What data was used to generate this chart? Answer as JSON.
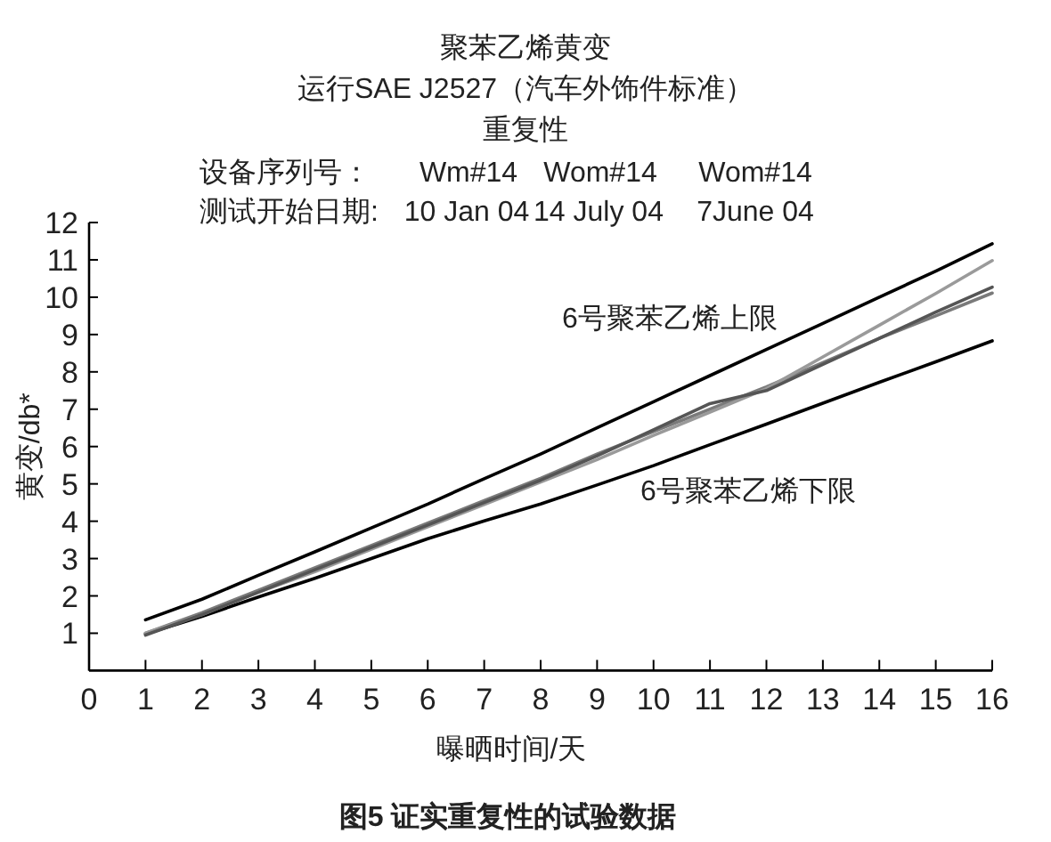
{
  "chart_data": {
    "type": "line",
    "title": "聚苯乙烯黄变",
    "subtitle": "运行SAE J2527（汽车外饰件标准）",
    "xlabel": "曝晒时间/天",
    "ylabel": "黄变/db*",
    "annotations": [
      "重复性",
      "设备序列号：",
      "Wm#14",
      "Wom#14",
      "Wom#14",
      "测试开始日期:",
      "10 Jan 04",
      "14 July 04",
      "7June 04",
      "6号聚苯乙烯上限",
      "6号聚苯乙烯下限",
      "图5 证实重复性的试验数据"
    ],
    "x": [
      1,
      2,
      3,
      4,
      5,
      6,
      7,
      8,
      9,
      10,
      11,
      12,
      13,
      14,
      15,
      16
    ],
    "series": [
      {
        "color": "#000000",
        "values": [
          1.36,
          1.91,
          2.55,
          3.18,
          3.82,
          4.46,
          5.14,
          5.8,
          6.5,
          7.2,
          7.9,
          8.6,
          9.3,
          10.0,
          10.7,
          11.43
        ]
      },
      {
        "color": "#000000",
        "values": [
          0.98,
          1.45,
          1.97,
          2.47,
          3.0,
          3.53,
          4.01,
          4.46,
          4.97,
          5.49,
          6.05,
          6.6,
          7.16,
          7.72,
          8.27,
          8.83
        ]
      },
      {
        "color": "#7a7a7a",
        "values": [
          1.0,
          1.55,
          2.15,
          2.75,
          3.35,
          3.95,
          4.55,
          5.15,
          5.8,
          6.4,
          7.0,
          7.6,
          8.25,
          8.9,
          9.5,
          10.11
        ]
      },
      {
        "color": "#9a9a9a",
        "values": [
          1.0,
          1.5,
          2.1,
          2.65,
          3.25,
          3.85,
          4.45,
          5.05,
          5.65,
          6.3,
          6.92,
          7.55,
          8.4,
          9.25,
          10.1,
          10.98
        ]
      },
      {
        "color": "#555555",
        "values": [
          0.95,
          1.5,
          2.1,
          2.7,
          3.3,
          3.9,
          4.5,
          5.1,
          5.75,
          6.45,
          7.15,
          7.5,
          8.2,
          8.9,
          9.6,
          10.27
        ]
      }
    ],
    "xlim": [
      0,
      16
    ],
    "ylim": [
      0,
      12
    ],
    "xticks": [
      0,
      1,
      2,
      3,
      4,
      5,
      6,
      7,
      8,
      9,
      10,
      11,
      12,
      13,
      14,
      15,
      16
    ],
    "yticks": [
      1,
      2,
      3,
      4,
      5,
      6,
      7,
      8,
      9,
      10,
      11,
      12
    ]
  }
}
